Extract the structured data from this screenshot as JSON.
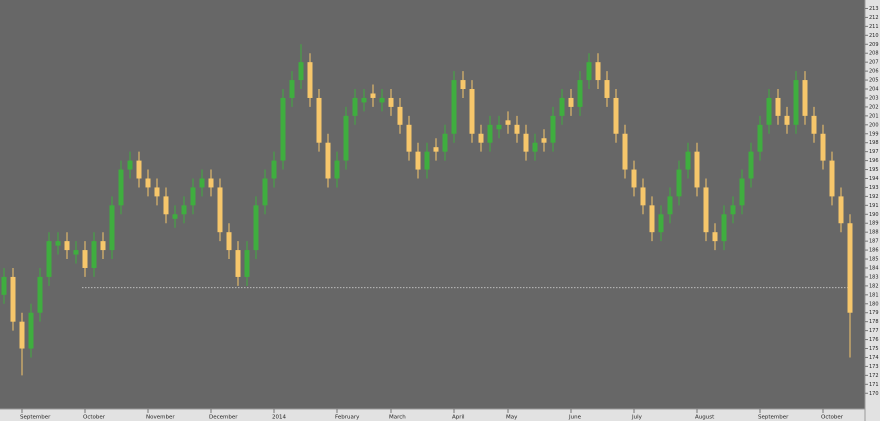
{
  "chart_data": {
    "type": "candlestick",
    "up_color": "#3fae3f",
    "down_color": "#f7c76b",
    "ylim": [
      168.8,
      213.5
    ],
    "yticks": [
      170,
      171,
      172,
      173,
      174,
      175,
      176,
      177,
      178,
      179,
      180,
      181,
      182,
      183,
      184,
      185,
      186,
      187,
      188,
      189,
      190,
      191,
      192,
      193,
      194,
      195,
      196,
      197,
      198,
      199,
      200,
      201,
      202,
      203,
      204,
      205,
      206,
      207,
      208,
      209,
      210,
      211,
      212,
      213
    ],
    "reference_line": 181.8,
    "categories": [
      null,
      null,
      "September",
      null,
      null,
      null,
      null,
      null,
      null,
      "October",
      null,
      null,
      null,
      null,
      null,
      null,
      "November",
      null,
      null,
      null,
      null,
      null,
      null,
      "December",
      null,
      null,
      null,
      null,
      null,
      null,
      "2014",
      null,
      null,
      null,
      null,
      null,
      null,
      "February",
      null,
      null,
      null,
      null,
      null,
      "March",
      null,
      null,
      null,
      null,
      null,
      null,
      "April",
      null,
      null,
      null,
      null,
      null,
      "May",
      null,
      null,
      null,
      null,
      null,
      null,
      "June",
      null,
      null,
      null,
      null,
      null,
      null,
      "July",
      null,
      null,
      null,
      null,
      null,
      null,
      "August",
      null,
      null,
      null,
      null,
      null,
      null,
      "September",
      null,
      null,
      null,
      null,
      null,
      null,
      "October",
      null,
      null,
      null
    ],
    "open": [
      181,
      183,
      178,
      175,
      179,
      183,
      186.5,
      187,
      185.5,
      186,
      184,
      187,
      186,
      191,
      195,
      196,
      194,
      193,
      192,
      189.5,
      190,
      191,
      193,
      194,
      193,
      188,
      186,
      183,
      186,
      191,
      194,
      196,
      203,
      205,
      207,
      203,
      198,
      194,
      196,
      201,
      202.5,
      203.5,
      202.5,
      203,
      202,
      200,
      197,
      195,
      197.5,
      197,
      199,
      205,
      204,
      199,
      198,
      199.5,
      200.5,
      200,
      199,
      197,
      198.5,
      198,
      201,
      203,
      202,
      205,
      207,
      205,
      203,
      199,
      195,
      193,
      191,
      188,
      190,
      192,
      195,
      197,
      193,
      188,
      187,
      190,
      191,
      194,
      197,
      200,
      203,
      201,
      200,
      205,
      201,
      199,
      196,
      192,
      189
    ],
    "high": [
      184,
      184,
      179,
      180,
      184,
      188,
      188,
      188,
      187,
      187,
      188,
      188,
      192,
      196,
      197,
      197,
      195,
      194,
      193,
      191,
      192,
      194,
      195,
      195,
      194,
      189,
      187,
      187,
      192,
      195,
      197,
      204,
      206,
      209,
      208,
      204,
      199,
      197,
      202,
      204,
      204,
      204.5,
      204,
      204,
      203,
      201,
      198,
      198,
      198.5,
      200,
      206,
      206,
      205,
      200,
      201,
      201,
      201.5,
      201,
      200,
      199,
      199.5,
      202,
      204,
      204,
      206,
      208,
      208,
      206,
      204,
      200,
      196,
      194,
      192,
      191,
      193,
      196,
      198,
      198,
      194,
      189,
      191,
      192,
      195,
      198,
      201,
      204,
      204,
      202,
      206,
      206,
      202,
      200,
      197,
      193,
      190
    ],
    "low": [
      180,
      177,
      172,
      174,
      178,
      182,
      185.5,
      185,
      184.5,
      183,
      183,
      185,
      185,
      190,
      194,
      193,
      192,
      191,
      189,
      188.5,
      189,
      190,
      192,
      192,
      187,
      185,
      182,
      182,
      185,
      190,
      193,
      195,
      202,
      204,
      202,
      197,
      193,
      193,
      195,
      200,
      201.5,
      202,
      201.5,
      201,
      199,
      196,
      194,
      194,
      196,
      196,
      198,
      203,
      198,
      197,
      197,
      198.5,
      199,
      198,
      196,
      196,
      197,
      197,
      200,
      201,
      201,
      204,
      204,
      202,
      198,
      194,
      192,
      190,
      187,
      187,
      189,
      191,
      194,
      192,
      187,
      186,
      186,
      189,
      190,
      193,
      196,
      199,
      200,
      199,
      199,
      200,
      198,
      195,
      191,
      188,
      174
    ],
    "close": [
      183,
      178,
      175,
      179,
      183,
      187,
      187,
      186,
      186,
      184,
      187,
      186,
      191,
      195,
      196,
      194,
      193,
      192,
      190,
      190,
      191,
      193,
      194,
      193,
      188,
      186,
      183,
      186,
      191,
      194,
      196,
      203,
      205,
      207,
      203,
      198,
      194,
      196,
      201,
      203,
      203,
      203,
      203,
      202,
      200,
      197,
      195,
      197,
      197,
      199,
      205,
      204,
      199,
      198,
      200,
      200,
      200,
      199,
      197,
      198,
      198,
      201,
      203,
      202,
      205,
      207,
      205,
      203,
      199,
      195,
      193,
      191,
      188,
      190,
      192,
      195,
      197,
      193,
      188,
      187,
      190,
      191,
      194,
      197,
      200,
      203,
      201,
      200,
      205,
      201,
      199,
      196,
      192,
      189,
      179
    ]
  }
}
